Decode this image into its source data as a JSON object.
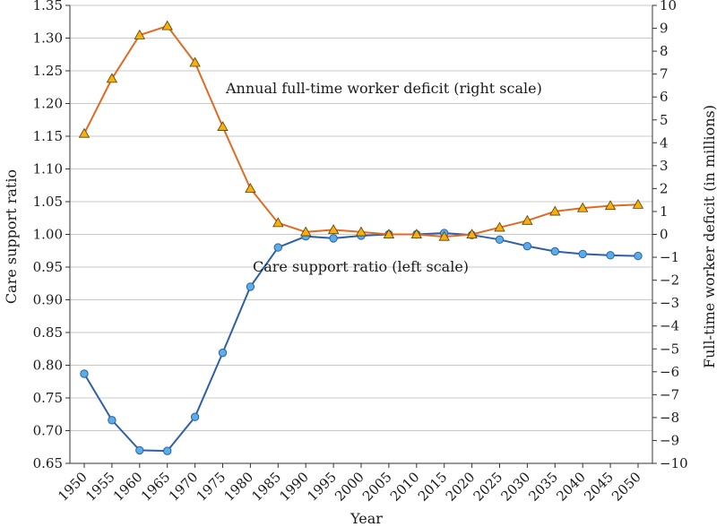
{
  "chart_data": {
    "type": "line",
    "x": [
      1950,
      1955,
      1960,
      1965,
      1970,
      1975,
      1980,
      1985,
      1990,
      1995,
      2000,
      2005,
      2010,
      2015,
      2020,
      2025,
      2030,
      2035,
      2040,
      2045,
      2050
    ],
    "x_tick_labels": [
      "1950",
      "1955",
      "1960",
      "1965",
      "1970",
      "1975",
      "1980",
      "1985",
      "1990",
      "1995",
      "2000",
      "2005",
      "2010",
      "2015",
      "2020",
      "2025",
      "2030",
      "2035",
      "2040",
      "2045",
      "2050"
    ],
    "xlabel": "Year",
    "ylabel_left": "Care support ratio",
    "ylabel_right": "Full-time worker deficit (in millions)",
    "ylim_left": [
      0.65,
      1.35
    ],
    "ylim_right": [
      -10,
      10
    ],
    "y_left_ticks": [
      "0.65",
      "0.70",
      "0.75",
      "0.80",
      "0.85",
      "0.90",
      "0.95",
      "1.00",
      "1.05",
      "1.10",
      "1.15",
      "1.20",
      "1.25",
      "1.30",
      "1.35"
    ],
    "y_right_ticks": [
      "−10",
      "−9",
      "−8",
      "−7",
      "−6",
      "−5",
      "−4",
      "−3",
      "−2",
      "−1",
      "0",
      "1",
      "2",
      "3",
      "4",
      "5",
      "6",
      "7",
      "8",
      "9",
      "10"
    ],
    "grid": "horizontal",
    "series": [
      {
        "label": "Care support ratio (left scale)",
        "axis": "left",
        "marker": "circle",
        "color": "#2e5fa8",
        "marker_fill": "#5aaee6",
        "values": [
          0.787,
          0.716,
          0.67,
          0.669,
          0.721,
          0.819,
          0.92,
          0.98,
          0.997,
          0.994,
          0.998,
          1.0,
          1.0,
          1.002,
          0.999,
          0.992,
          0.982,
          0.974,
          0.97,
          0.968,
          0.967
        ]
      },
      {
        "label": "Annual full-time worker deficit (right scale)",
        "axis": "right",
        "marker": "triangle",
        "color": "#e06a24",
        "marker_fill": "#f5b010",
        "values": [
          4.4,
          6.8,
          8.7,
          9.1,
          7.5,
          4.7,
          2.0,
          0.5,
          0.1,
          0.2,
          0.1,
          0.0,
          0.0,
          -0.1,
          0.0,
          0.3,
          0.6,
          1.0,
          1.15,
          1.25,
          1.3
        ]
      }
    ]
  }
}
